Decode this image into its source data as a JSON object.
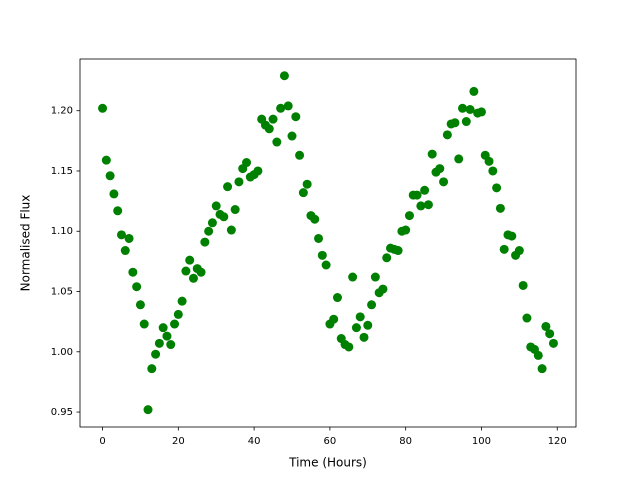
{
  "chart_data": {
    "type": "scatter",
    "x_label": "Time (Hours)",
    "y_label": "Normalised Flux",
    "color": "#008000",
    "grid": false,
    "x": [
      0,
      1,
      2,
      3,
      4,
      5,
      6,
      7,
      8,
      9,
      10,
      11,
      12,
      13,
      14,
      15,
      16,
      17,
      18,
      19,
      20,
      21,
      22,
      23,
      24,
      25,
      26,
      27,
      28,
      29,
      30,
      31,
      32,
      33,
      34,
      35,
      36,
      37,
      38,
      39,
      40,
      41,
      42,
      43,
      44,
      45,
      46,
      47,
      48,
      49,
      50,
      51,
      52,
      53,
      54,
      55,
      56,
      57,
      58,
      59,
      60,
      61,
      62,
      63,
      64,
      65,
      66,
      67,
      68,
      69,
      70,
      71,
      72,
      73,
      74,
      75,
      76,
      77,
      78,
      79,
      80,
      81,
      82,
      83,
      84,
      85,
      86,
      87,
      88,
      89,
      90,
      91,
      92,
      93,
      94,
      95,
      96,
      97,
      98,
      99,
      100,
      101,
      102,
      103,
      104,
      105,
      106,
      107,
      108,
      109,
      110,
      111,
      112,
      113,
      114,
      115,
      116,
      117,
      118,
      119
    ],
    "values": [
      1.202,
      1.159,
      1.146,
      1.131,
      1.117,
      1.097,
      1.084,
      1.094,
      1.066,
      1.054,
      1.039,
      1.023,
      0.952,
      0.986,
      0.998,
      1.007,
      1.02,
      1.013,
      1.006,
      1.023,
      1.031,
      1.042,
      1.067,
      1.076,
      1.061,
      1.069,
      1.066,
      1.091,
      1.1,
      1.107,
      1.121,
      1.114,
      1.112,
      1.137,
      1.101,
      1.118,
      1.141,
      1.152,
      1.157,
      1.145,
      1.147,
      1.15,
      1.193,
      1.188,
      1.185,
      1.193,
      1.174,
      1.202,
      1.229,
      1.204,
      1.179,
      1.195,
      1.163,
      1.132,
      1.139,
      1.113,
      1.11,
      1.094,
      1.08,
      1.072,
      1.023,
      1.027,
      1.045,
      1.011,
      1.006,
      1.004,
      1.062,
      1.02,
      1.029,
      1.012,
      1.022,
      1.039,
      1.062,
      1.049,
      1.052,
      1.078,
      1.086,
      1.085,
      1.084,
      1.1,
      1.101,
      1.113,
      1.13,
      1.13,
      1.121,
      1.134,
      1.122,
      1.164,
      1.149,
      1.152,
      1.141,
      1.18,
      1.189,
      1.19,
      1.16,
      1.202,
      1.191,
      1.201,
      1.216,
      1.198,
      1.199,
      1.163,
      1.158,
      1.15,
      1.136,
      1.119,
      1.085,
      1.097,
      1.096,
      1.08,
      1.084,
      1.055,
      1.028,
      1.004,
      1.002,
      0.997,
      0.986,
      1.021,
      1.015,
      1.007
    ],
    "xlim": [
      -5.95,
      124.95
    ],
    "xticks": [
      0,
      20,
      40,
      60,
      80,
      100,
      120
    ],
    "ylim": [
      0.9376,
      1.2429
    ],
    "yticks": [
      0.95,
      {
        "value": 1,
        "label": "1.00"
      },
      1.05,
      {
        "value": 1.1,
        "label": "1.10"
      },
      1.15,
      {
        "value": 1.2,
        "label": "1.20"
      }
    ]
  }
}
